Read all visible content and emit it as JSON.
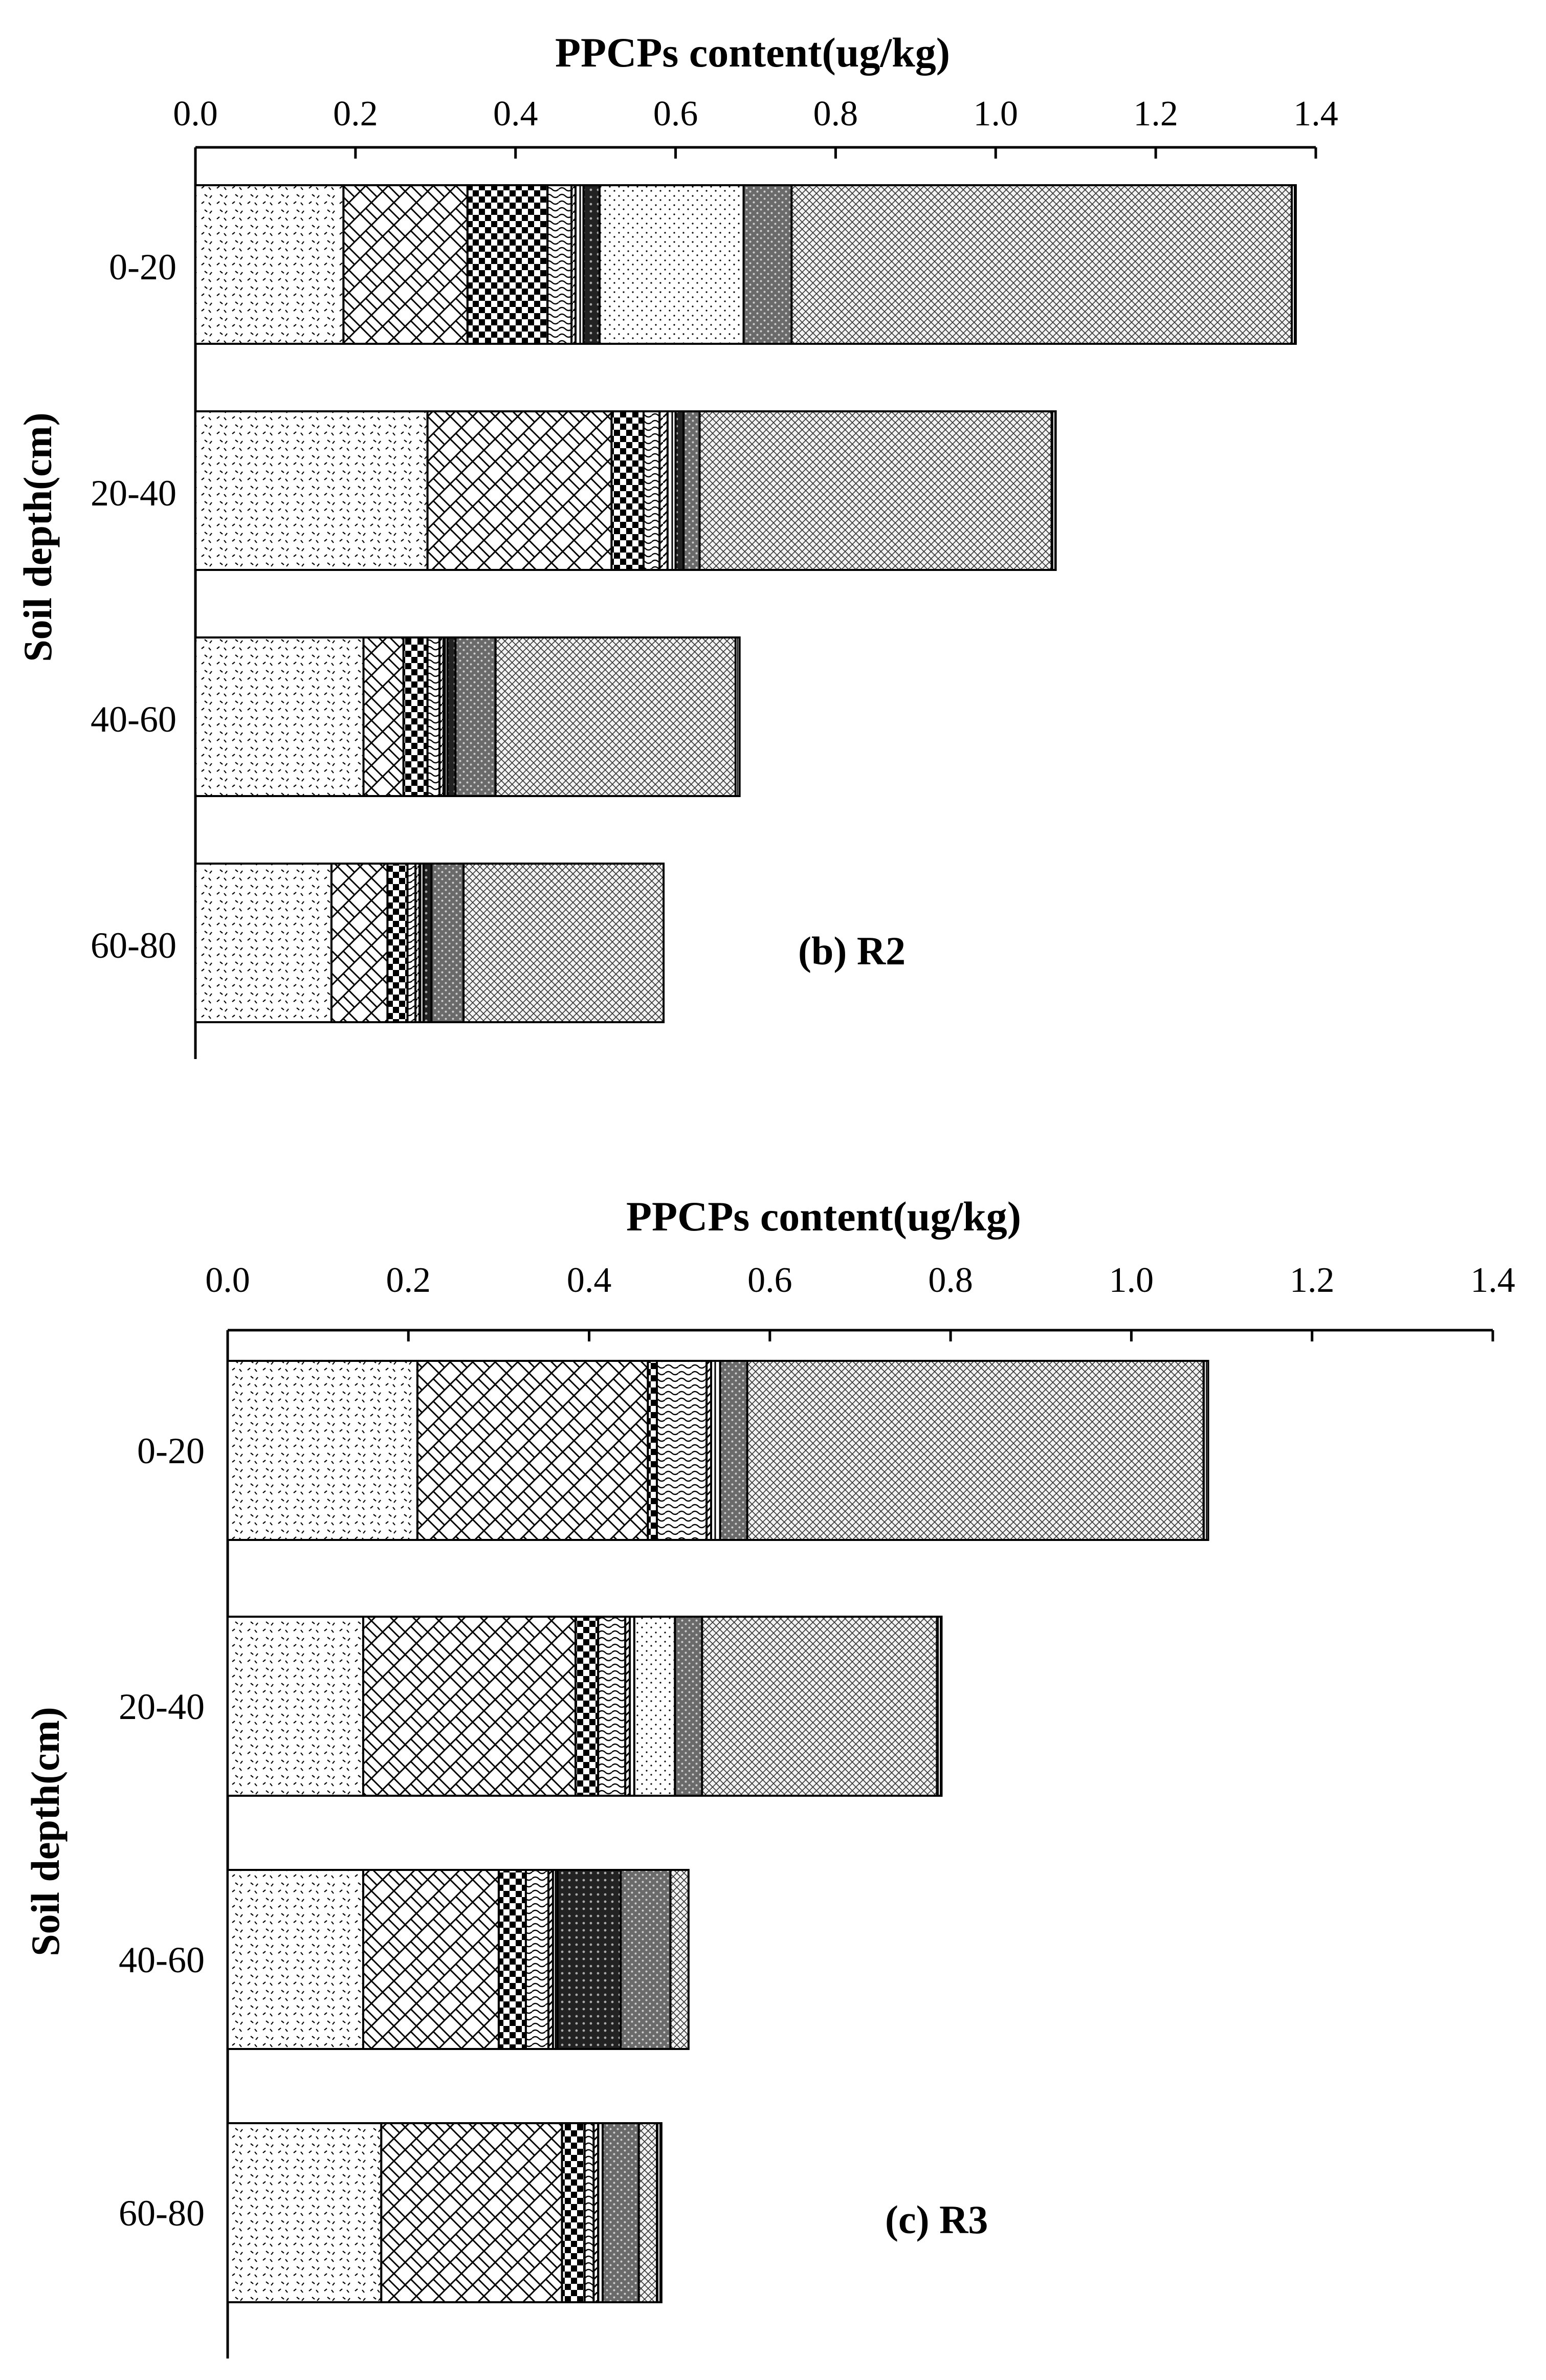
{
  "chart_data": [
    {
      "type": "bar",
      "orientation": "horizontal",
      "stacked": true,
      "title": "PPCPs content(ug/kg)",
      "ylabel": "Soil depth(cm)",
      "panel_label": "(b) R2",
      "xlim": [
        0.0,
        1.4
      ],
      "xticks": [
        "0.0",
        "0.2",
        "0.4",
        "0.6",
        "0.8",
        "1.0",
        "1.2",
        "1.4"
      ],
      "categories": [
        "0-20",
        "20-40",
        "40-60",
        "60-80"
      ],
      "series_patterns": [
        "dots",
        "brick",
        "checker",
        "wave",
        "diag",
        "lines",
        "dense",
        "stipple",
        "medium",
        "crosshatch",
        "vlines"
      ],
      "segments": [
        [
          0.185,
          0.155,
          0.1,
          0.03,
          0.005,
          0.01,
          0.02,
          0.18,
          0.06,
          0.625,
          0.005
        ],
        [
          0.29,
          0.23,
          0.04,
          0.02,
          0.01,
          0.01,
          0.01,
          0.0,
          0.02,
          0.44,
          0.005
        ],
        [
          0.21,
          0.05,
          0.03,
          0.015,
          0.005,
          0.005,
          0.01,
          0.0,
          0.05,
          0.3,
          0.005
        ],
        [
          0.17,
          0.07,
          0.025,
          0.01,
          0.005,
          0.005,
          0.01,
          0.0,
          0.04,
          0.25,
          0.0
        ]
      ]
    },
    {
      "type": "bar",
      "orientation": "horizontal",
      "stacked": true,
      "title": "PPCPs content(ug/kg)",
      "ylabel": "Soil depth(cm)",
      "panel_label": "(c) R3",
      "xlim": [
        0.0,
        1.4
      ],
      "xticks": [
        "0.0",
        "0.2",
        "0.4",
        "0.6",
        "0.8",
        "1.0",
        "1.2",
        "1.4"
      ],
      "categories": [
        "0-20",
        "20-40",
        "40-60",
        "60-80"
      ],
      "series_patterns": [
        "dots",
        "brick",
        "checker",
        "wave",
        "diag",
        "lines",
        "dense",
        "stipple",
        "medium",
        "crosshatch",
        "vlines"
      ],
      "segments": [
        [
          0.21,
          0.255,
          0.01,
          0.055,
          0.005,
          0.01,
          0.0,
          0.0,
          0.03,
          0.505,
          0.005
        ],
        [
          0.15,
          0.235,
          0.025,
          0.03,
          0.005,
          0.005,
          0.0,
          0.045,
          0.03,
          0.26,
          0.005
        ],
        [
          0.15,
          0.15,
          0.03,
          0.025,
          0.005,
          0.005,
          0.07,
          0.0,
          0.055,
          0.02,
          0.0
        ],
        [
          0.17,
          0.2,
          0.025,
          0.01,
          0.005,
          0.005,
          0.0,
          0.0,
          0.04,
          0.02,
          0.005
        ]
      ]
    }
  ],
  "colors": {
    "ink": "#000000",
    "background": "#ffffff"
  }
}
